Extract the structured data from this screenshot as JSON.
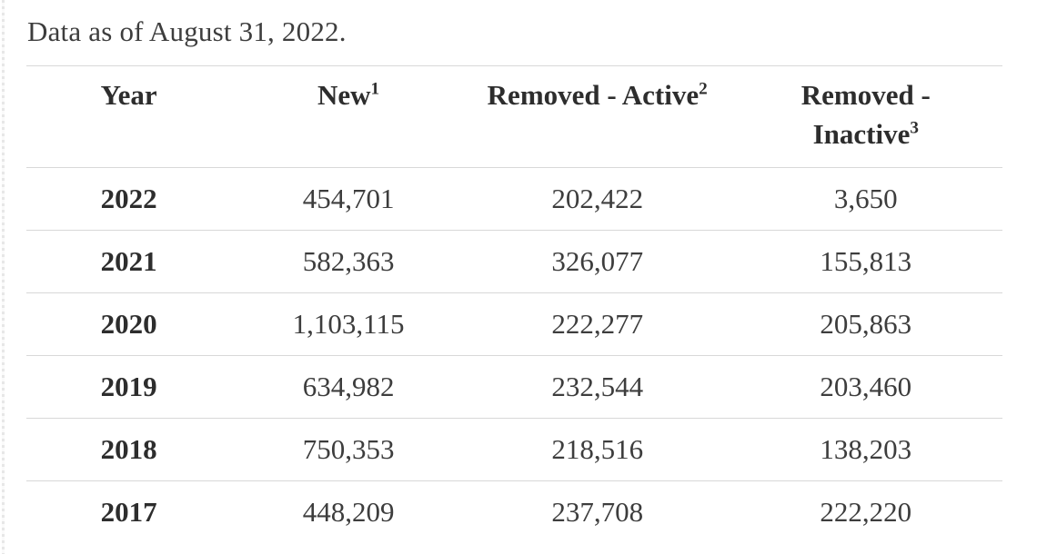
{
  "page": {
    "note": "Data as of August 31, 2022."
  },
  "table": {
    "headers": [
      {
        "label": "Year",
        "sup": ""
      },
      {
        "label": "New",
        "sup": "1"
      },
      {
        "label": "Removed - Active",
        "sup": "2"
      },
      {
        "label": "Removed - Inactive",
        "sup": "3"
      }
    ],
    "rows": [
      {
        "year": "2022",
        "new": "454,701",
        "removed_active": "202,422",
        "removed_inactive": "3,650"
      },
      {
        "year": "2021",
        "new": "582,363",
        "removed_active": "326,077",
        "removed_inactive": "155,813"
      },
      {
        "year": "2020",
        "new": "1,103,115",
        "removed_active": "222,277",
        "removed_inactive": "205,863"
      },
      {
        "year": "2019",
        "new": "634,982",
        "removed_active": "232,544",
        "removed_inactive": "203,460"
      },
      {
        "year": "2018",
        "new": "750,353",
        "removed_active": "218,516",
        "removed_inactive": "138,203"
      },
      {
        "year": "2017",
        "new": "448,209",
        "removed_active": "237,708",
        "removed_inactive": "222,220"
      }
    ]
  },
  "chart_data": {
    "type": "table",
    "title": "Data as of August 31, 2022.",
    "columns": [
      "Year",
      "New",
      "Removed - Active",
      "Removed - Inactive"
    ],
    "categories": [
      "2022",
      "2021",
      "2020",
      "2019",
      "2018",
      "2017"
    ],
    "series": [
      {
        "name": "New",
        "values": [
          454701,
          582363,
          1103115,
          634982,
          750353,
          448209
        ]
      },
      {
        "name": "Removed - Active",
        "values": [
          202422,
          326077,
          222277,
          232544,
          218516,
          237708
        ]
      },
      {
        "name": "Removed - Inactive",
        "values": [
          3650,
          155813,
          205863,
          203460,
          138203,
          222220
        ]
      }
    ]
  },
  "colors": {
    "text_regular": "#3d3d3d",
    "text_bold": "#2d2d2d",
    "separator_line": "#d8d8d8",
    "background": "#ffffff"
  }
}
